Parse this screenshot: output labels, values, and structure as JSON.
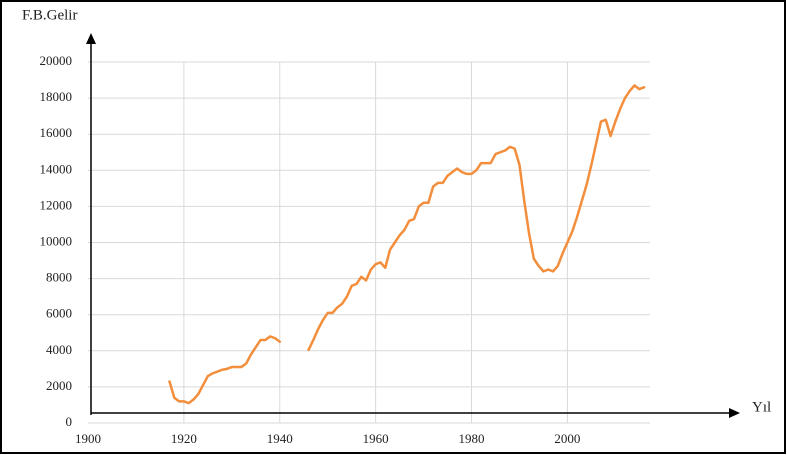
{
  "chart_data": {
    "type": "line",
    "y_label": "F.B.Gelir",
    "x_label": "Yıl",
    "x": [
      1917,
      1918,
      1919,
      1920,
      1921,
      1922,
      1923,
      1924,
      1925,
      1926,
      1927,
      1928,
      1929,
      1930,
      1931,
      1932,
      1933,
      1934,
      1935,
      1936,
      1937,
      1938,
      1939,
      1940,
      1941,
      1942,
      1943,
      1944,
      1945,
      1946,
      1947,
      1948,
      1949,
      1950,
      1951,
      1952,
      1953,
      1954,
      1955,
      1956,
      1957,
      1958,
      1959,
      1960,
      1961,
      1962,
      1963,
      1964,
      1965,
      1966,
      1967,
      1968,
      1969,
      1970,
      1971,
      1972,
      1973,
      1974,
      1975,
      1976,
      1977,
      1978,
      1979,
      1980,
      1981,
      1982,
      1983,
      1984,
      1985,
      1986,
      1987,
      1988,
      1989,
      1990,
      1991,
      1992,
      1993,
      1994,
      1995,
      1996,
      1997,
      1998,
      1999,
      2000,
      2001,
      2002,
      2003,
      2004,
      2005,
      2006,
      2007,
      2008,
      2009,
      2010,
      2011,
      2012,
      2013,
      2014,
      2015,
      2016
    ],
    "series": [
      {
        "color": "#f28e3c",
        "values": [
          2300,
          1400,
          1200,
          1200,
          1100,
          1300,
          1600,
          2100,
          2600,
          2750,
          2850,
          2950,
          3000,
          3100,
          3100,
          3100,
          3300,
          3800,
          4200,
          4600,
          4600,
          4800,
          4700,
          4500,
          null,
          null,
          null,
          null,
          null,
          4050,
          4600,
          5200,
          5700,
          6100,
          6100,
          6400,
          6600,
          7000,
          7600,
          7700,
          8100,
          7900,
          8500,
          8800,
          8900,
          8600,
          9600,
          10000,
          10400,
          10700,
          11200,
          11300,
          12000,
          12200,
          12200,
          13100,
          13300,
          13300,
          13700,
          13900,
          14100,
          13900,
          13800,
          13800,
          14000,
          14400,
          14400,
          14400,
          14900,
          15000,
          15100,
          15300,
          15200,
          14300,
          12300,
          10500,
          9100,
          8700,
          8400,
          8500,
          8400,
          8700,
          9400,
          10000,
          10600,
          11400,
          12300,
          13200,
          14300,
          15500,
          16700,
          16800,
          15900,
          16700,
          17400,
          18000,
          18400,
          18700,
          18500,
          18600
        ]
      }
    ],
    "xlim": [
      1900,
      2036
    ],
    "xticks": [
      1900,
      1920,
      1940,
      1960,
      1980,
      2000
    ],
    "ylim": [
      0,
      20000
    ],
    "yticks": [
      0,
      2000,
      4000,
      6000,
      8000,
      10000,
      12000,
      14000,
      16000,
      18000,
      20000
    ],
    "grid": true
  }
}
